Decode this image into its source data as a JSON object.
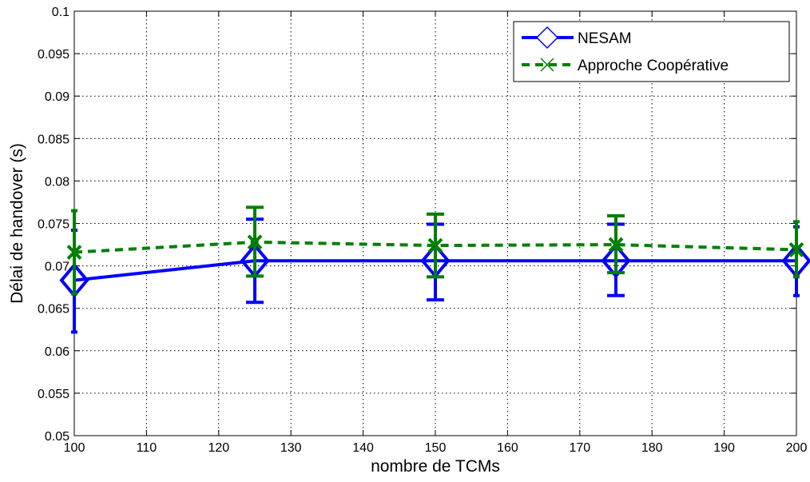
{
  "chart_data": {
    "type": "line",
    "title": "",
    "xlabel": "nombre de TCMs",
    "ylabel": "Délai de handover (s)",
    "xlim": [
      100,
      200
    ],
    "ylim": [
      0.05,
      0.1
    ],
    "xticks": [
      100,
      110,
      120,
      130,
      140,
      150,
      160,
      170,
      180,
      190,
      200
    ],
    "xtick_labels": [
      "100",
      "110",
      "120",
      "130",
      "140",
      "150",
      "160",
      "170",
      "180",
      "190",
      "200"
    ],
    "yticks": [
      0.05,
      0.055,
      0.06,
      0.065,
      0.07,
      0.075,
      0.08,
      0.085,
      0.09,
      0.095,
      0.1
    ],
    "ytick_labels": [
      "0.05",
      "0.055",
      "0.06",
      "0.065",
      "0.07",
      "0.075",
      "0.08",
      "0.085",
      "0.09",
      "0.095",
      "0.1"
    ],
    "grid": true,
    "legend_position": "top-right",
    "x": [
      100,
      125,
      150,
      175,
      200
    ],
    "series": [
      {
        "name": "NESAM",
        "color": "#0000ff",
        "line_style": "solid",
        "marker": "diamond-icon",
        "values": [
          0.0683,
          0.0706,
          0.0706,
          0.0706,
          0.0706
        ],
        "err_low": [
          0.0622,
          0.0657,
          0.066,
          0.0665,
          0.0665
        ],
        "err_high": [
          0.0742,
          0.0755,
          0.0749,
          0.0749,
          0.0746
        ]
      },
      {
        "name": "Approche Coopérative",
        "color": "#007f00",
        "line_style": "dashed",
        "marker": "x-cross-icon",
        "values": [
          0.0716,
          0.0728,
          0.0724,
          0.0725,
          0.0719
        ],
        "err_low": [
          0.0667,
          0.0688,
          0.0687,
          0.0692,
          0.0687
        ],
        "err_high": [
          0.0765,
          0.0769,
          0.0761,
          0.0759,
          0.0752
        ]
      }
    ]
  }
}
